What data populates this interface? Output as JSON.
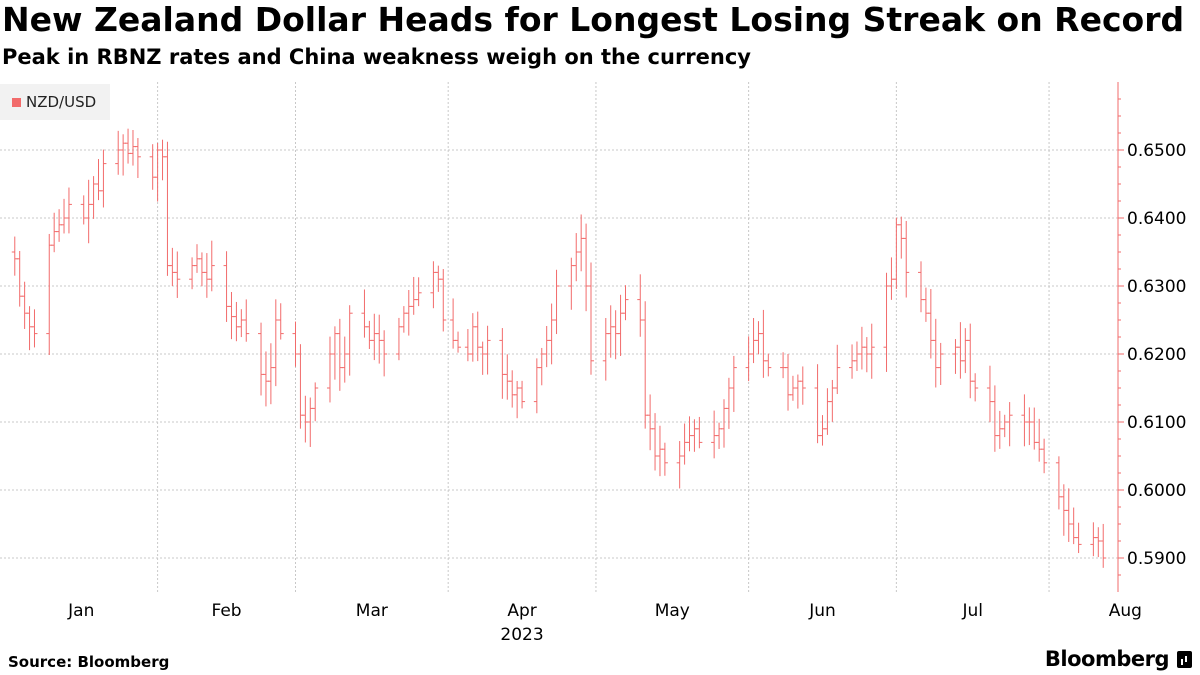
{
  "title": "New Zealand Dollar Heads for Longest Losing Streak on Record",
  "subtitle": "Peak in RBNZ rates and China weakness weigh on the currency",
  "source": "Source: Bloomberg",
  "brand": "Bloomberg",
  "chart_data": {
    "type": "ohlc",
    "series": [
      {
        "name": "NZD/USD",
        "color": "#f26b6b"
      }
    ],
    "x_labels": [
      "Jan",
      "Feb",
      "Mar",
      "Apr",
      "May",
      "Jun",
      "Jul",
      "Aug"
    ],
    "year_label": "2023",
    "y_ticks": [
      "0.6500",
      "0.6400",
      "0.6300",
      "0.6200",
      "0.6100",
      "0.6000",
      "0.5900"
    ],
    "y_tick_values": [
      0.65,
      0.64,
      0.63,
      0.62,
      0.61,
      0.6,
      0.59
    ],
    "ylim": [
      0.585,
      0.66
    ],
    "axis_side": "right",
    "grid": true,
    "legend_placement": "top-left",
    "x_range_days": [
      -1,
      218
    ],
    "month_start_days": [
      0,
      31,
      59,
      90,
      120,
      151,
      181,
      212
    ],
    "closes": [
      [
        2,
        0.634
      ],
      [
        3,
        0.6285
      ],
      [
        4,
        0.626
      ],
      [
        5,
        0.624
      ],
      [
        6,
        0.623
      ],
      [
        9,
        0.636
      ],
      [
        10,
        0.638
      ],
      [
        11,
        0.639
      ],
      [
        12,
        0.64
      ],
      [
        13,
        0.642
      ],
      [
        16,
        0.64
      ],
      [
        17,
        0.642
      ],
      [
        18,
        0.645
      ],
      [
        19,
        0.644
      ],
      [
        20,
        0.648
      ],
      [
        23,
        0.65
      ],
      [
        24,
        0.651
      ],
      [
        25,
        0.6495
      ],
      [
        26,
        0.6505
      ],
      [
        27,
        0.649
      ],
      [
        30,
        0.646
      ],
      [
        31,
        0.65
      ],
      [
        32,
        0.649
      ],
      [
        33,
        0.633
      ],
      [
        34,
        0.632
      ],
      [
        35,
        0.631
      ],
      [
        38,
        0.633
      ],
      [
        39,
        0.634
      ],
      [
        40,
        0.632
      ],
      [
        41,
        0.631
      ],
      [
        42,
        0.633
      ],
      [
        45,
        0.627
      ],
      [
        46,
        0.6255
      ],
      [
        47,
        0.624
      ],
      [
        48,
        0.625
      ],
      [
        49,
        0.623
      ],
      [
        52,
        0.617
      ],
      [
        53,
        0.616
      ],
      [
        54,
        0.618
      ],
      [
        55,
        0.625
      ],
      [
        56,
        0.623
      ],
      [
        59,
        0.62
      ],
      [
        60,
        0.611
      ],
      [
        61,
        0.61
      ],
      [
        62,
        0.612
      ],
      [
        63,
        0.615
      ],
      [
        66,
        0.62
      ],
      [
        67,
        0.623
      ],
      [
        68,
        0.618
      ],
      [
        69,
        0.62
      ],
      [
        70,
        0.626
      ],
      [
        73,
        0.624
      ],
      [
        74,
        0.622
      ],
      [
        75,
        0.623
      ],
      [
        76,
        0.622
      ],
      [
        77,
        0.62
      ],
      [
        80,
        0.624
      ],
      [
        81,
        0.626
      ],
      [
        82,
        0.627
      ],
      [
        83,
        0.628
      ],
      [
        84,
        0.629
      ],
      [
        87,
        0.632
      ],
      [
        88,
        0.631
      ],
      [
        89,
        0.625
      ],
      [
        91,
        0.622
      ],
      [
        92,
        0.621
      ],
      [
        94,
        0.62
      ],
      [
        95,
        0.624
      ],
      [
        96,
        0.621
      ],
      [
        97,
        0.62
      ],
      [
        98,
        0.622
      ],
      [
        101,
        0.617
      ],
      [
        102,
        0.616
      ],
      [
        103,
        0.614
      ],
      [
        104,
        0.615
      ],
      [
        105,
        0.613
      ],
      [
        108,
        0.618
      ],
      [
        109,
        0.62
      ],
      [
        110,
        0.622
      ],
      [
        111,
        0.625
      ],
      [
        112,
        0.63
      ],
      [
        115,
        0.633
      ],
      [
        116,
        0.635
      ],
      [
        117,
        0.637
      ],
      [
        118,
        0.63
      ],
      [
        119,
        0.619
      ],
      [
        122,
        0.623
      ],
      [
        123,
        0.624
      ],
      [
        124,
        0.623
      ],
      [
        125,
        0.626
      ],
      [
        126,
        0.628
      ],
      [
        129,
        0.625
      ],
      [
        130,
        0.611
      ],
      [
        131,
        0.609
      ],
      [
        132,
        0.605
      ],
      [
        133,
        0.606
      ],
      [
        134,
        0.604
      ],
      [
        137,
        0.605
      ],
      [
        138,
        0.607
      ],
      [
        139,
        0.608
      ],
      [
        140,
        0.609
      ],
      [
        141,
        0.607
      ],
      [
        144,
        0.608
      ],
      [
        145,
        0.609
      ],
      [
        146,
        0.612
      ],
      [
        147,
        0.615
      ],
      [
        148,
        0.618
      ],
      [
        151,
        0.62
      ],
      [
        152,
        0.622
      ],
      [
        153,
        0.623
      ],
      [
        154,
        0.619
      ],
      [
        155,
        0.618
      ],
      [
        158,
        0.618
      ],
      [
        159,
        0.614
      ],
      [
        160,
        0.615
      ],
      [
        161,
        0.616
      ],
      [
        162,
        0.615
      ],
      [
        165,
        0.608
      ],
      [
        166,
        0.609
      ],
      [
        167,
        0.613
      ],
      [
        168,
        0.615
      ],
      [
        169,
        0.618
      ],
      [
        172,
        0.619
      ],
      [
        173,
        0.62
      ],
      [
        174,
        0.621
      ],
      [
        175,
        0.62
      ],
      [
        176,
        0.621
      ],
      [
        179,
        0.63
      ],
      [
        180,
        0.631
      ],
      [
        181,
        0.639
      ],
      [
        182,
        0.637
      ],
      [
        183,
        0.632
      ],
      [
        186,
        0.628
      ],
      [
        187,
        0.626
      ],
      [
        188,
        0.622
      ],
      [
        189,
        0.618
      ],
      [
        190,
        0.62
      ],
      [
        193,
        0.621
      ],
      [
        194,
        0.619
      ],
      [
        195,
        0.622
      ],
      [
        196,
        0.616
      ],
      [
        197,
        0.615
      ],
      [
        200,
        0.613
      ],
      [
        201,
        0.608
      ],
      [
        202,
        0.609
      ],
      [
        203,
        0.61
      ],
      [
        204,
        0.611
      ],
      [
        207,
        0.61
      ],
      [
        208,
        0.61
      ],
      [
        209,
        0.607
      ],
      [
        210,
        0.606
      ],
      [
        211,
        0.604
      ],
      [
        214,
        0.599
      ],
      [
        215,
        0.597
      ],
      [
        216,
        0.595
      ],
      [
        217,
        0.593
      ],
      [
        218,
        0.592
      ],
      [
        221,
        0.593
      ],
      [
        222,
        0.5925
      ],
      [
        223,
        0.59
      ]
    ]
  }
}
